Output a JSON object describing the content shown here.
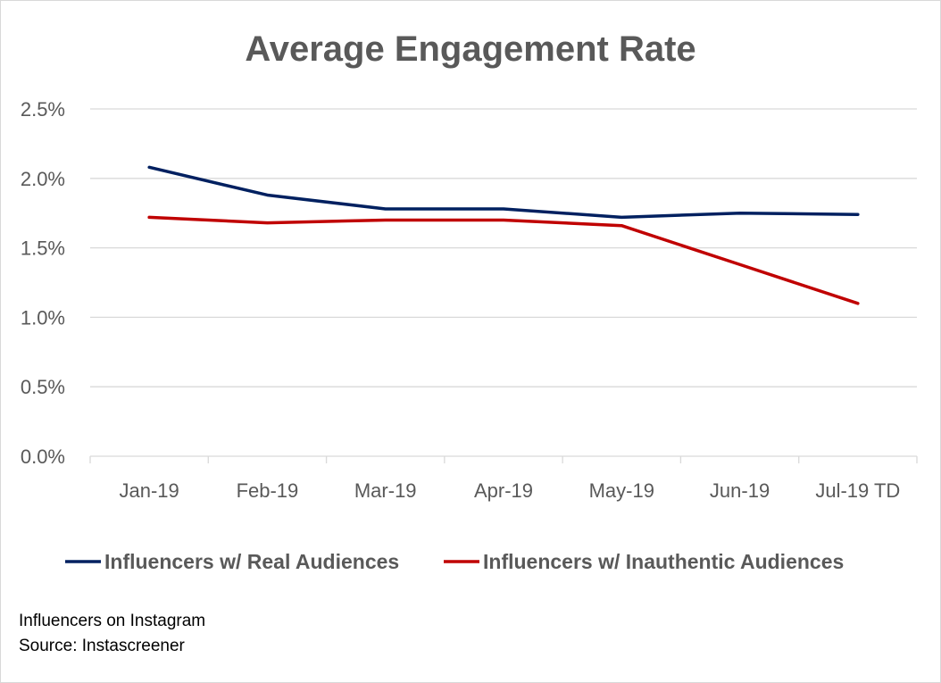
{
  "chart_data": {
    "type": "line",
    "title": "Average Engagement Rate",
    "categories": [
      "Jan-19",
      "Feb-19",
      "Mar-19",
      "Apr-19",
      "May-19",
      "Jun-19",
      "Jul-19 TD"
    ],
    "y_ticks": [
      "0.0%",
      "0.5%",
      "1.0%",
      "1.5%",
      "2.0%",
      "2.5%"
    ],
    "ylim": [
      0,
      2.5
    ],
    "y_unit": "%",
    "grid": true,
    "legend_position": "bottom",
    "series": [
      {
        "name": "Influencers w/ Real Audiences",
        "color": "#002060",
        "values": [
          2.08,
          1.88,
          1.78,
          1.78,
          1.72,
          1.75,
          1.74
        ]
      },
      {
        "name": "Influencers w/ Inauthentic Audiences",
        "color": "#C00000",
        "values": [
          1.72,
          1.68,
          1.7,
          1.7,
          1.66,
          1.38,
          1.1
        ]
      }
    ]
  },
  "notes": {
    "line1": "Influencers on Instagram",
    "line2": "Source: Instascreener"
  }
}
